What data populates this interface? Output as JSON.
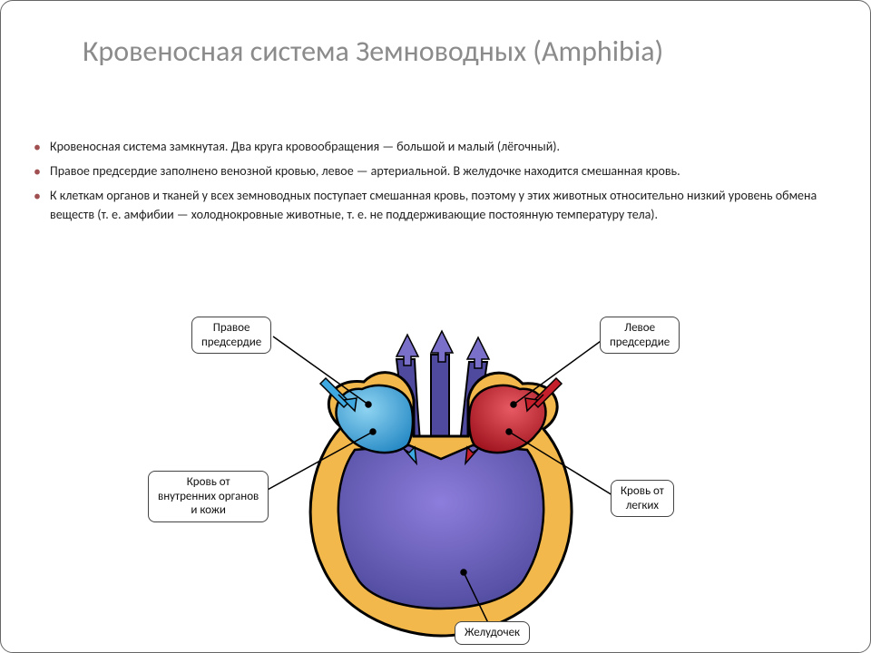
{
  "title": "Кровеносная система Земноводных (Amphibia)",
  "title_fontsize": 32,
  "title_color": "#8b8b8b",
  "bullets": [
    "Кровеносная система замкнутая. Два круга кровообращения — большой и малый (лёгочный).",
    "Правое предсердие заполнено венозной кровью, левое — артериальной. В желудочке находится смешанная кровь.",
    "К клеткам органов и тканей у всех земноводных поступает смешанная кровь, поэтому у этих животных относительно низкий уровень обмена веществ (т. е. амфибии — холоднокровные животные, т. е. не поддерживающие постоянную температуру тела)."
  ],
  "bullet_fontsize": 14,
  "bullet_marker_color": "#a05050",
  "diagram": {
    "type": "anatomical-diagram",
    "background": "#ffffff",
    "outline_color": "#000000",
    "heart_wall_color": "#f2b84b",
    "right_atrium_color": "#3ea9e0",
    "left_atrium_color": "#c41f2b",
    "ventricle_color": "#6a55c0",
    "vessel_color": "#4f4a9e",
    "arrow_blue": "#3ea9e0",
    "arrow_red": "#c41f2b",
    "arrow_purple": "#7a6fc9",
    "labels": {
      "right_atrium": "Правое\nпредсердие",
      "left_atrium": "Левое\nпредсердие",
      "blood_from_organs": "Кровь от\nвнутренних органов\nи кожи",
      "blood_from_lungs": "Кровь от\nлегких",
      "ventricle": "Желудочек"
    },
    "label_fontsize": 13,
    "label_border_color": "#444444",
    "label_bg": "#ffffff",
    "leader_color": "#000000"
  }
}
